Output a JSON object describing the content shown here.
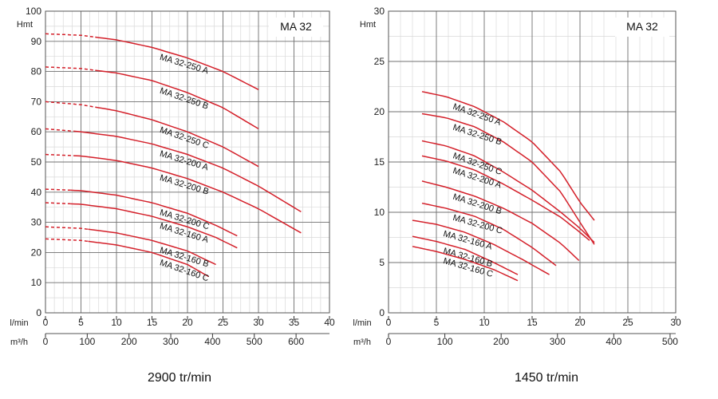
{
  "chart_data": [
    {
      "type": "line",
      "model": "MA 32",
      "speed_label": "2900 tr/min",
      "y_unit": "Hmt",
      "x_unit_top": "l/min",
      "x_unit_bottom": "m³/h",
      "xlim": [
        0,
        40
      ],
      "ylim": [
        0,
        100
      ],
      "x_ticks_top": [
        "0",
        "5",
        "10",
        "15",
        "20",
        "25",
        "30",
        "35",
        "40"
      ],
      "x_ticks_bottom": [
        "0",
        "100",
        "200",
        "300",
        "400",
        "500",
        "600"
      ],
      "y_ticks": [
        "0",
        "10",
        "20",
        "30",
        "40",
        "50",
        "60",
        "70",
        "80",
        "90",
        "100"
      ],
      "series": [
        {
          "name": "MA 32-250 A",
          "dashed_until": 7,
          "x": [
            0,
            5,
            10,
            15,
            20,
            25,
            30
          ],
          "y": [
            92.5,
            92,
            90.5,
            88,
            84.5,
            80,
            74
          ]
        },
        {
          "name": "MA 32-250 B",
          "dashed_until": 7,
          "x": [
            0,
            5,
            10,
            15,
            20,
            25,
            30
          ],
          "y": [
            81.5,
            81,
            79.5,
            77,
            73,
            68,
            61
          ]
        },
        {
          "name": "MA 32-250 C",
          "dashed_until": 7,
          "x": [
            0,
            5,
            10,
            15,
            20,
            25,
            30
          ],
          "y": [
            70,
            69,
            67,
            64,
            60,
            55,
            48.5
          ]
        },
        {
          "name": "MA 32-200 A",
          "dashed_until": 4,
          "x": [
            0,
            5,
            10,
            15,
            20,
            25,
            30,
            36
          ],
          "y": [
            61,
            60,
            58.5,
            56,
            52.5,
            48,
            42,
            33.5
          ]
        },
        {
          "name": "MA 32-200 B",
          "dashed_until": 4,
          "x": [
            0,
            5,
            10,
            15,
            20,
            25,
            30,
            36
          ],
          "y": [
            52.5,
            52,
            50.5,
            48,
            44.5,
            40,
            34.5,
            26.5
          ]
        },
        {
          "name": "MA 32-200 C",
          "dashed_until": 3.5,
          "x": [
            0,
            5,
            10,
            15,
            20,
            24,
            27
          ],
          "y": [
            41,
            40.5,
            39,
            36.5,
            33,
            29,
            25.5
          ]
        },
        {
          "name": "MA 32-160 A",
          "dashed_until": 3.5,
          "x": [
            0,
            5,
            10,
            15,
            20,
            24,
            27
          ],
          "y": [
            36.5,
            36,
            34.5,
            32,
            28.5,
            25,
            21.5
          ]
        },
        {
          "name": "MA 32-160 B",
          "dashed_until": 6,
          "x": [
            0,
            5,
            10,
            15,
            20,
            24
          ],
          "y": [
            28.5,
            28,
            26.5,
            24,
            20.5,
            16
          ]
        },
        {
          "name": "MA 32-160 C",
          "dashed_until": 6,
          "x": [
            0,
            5,
            10,
            15,
            20,
            23
          ],
          "y": [
            24.5,
            24,
            22.5,
            20,
            16,
            12
          ]
        }
      ]
    },
    {
      "type": "line",
      "model": "MA 32",
      "speed_label": "1450 tr/min",
      "y_unit": "Hmt",
      "x_unit_top": "l/min",
      "x_unit_bottom": "m³/h",
      "xlim": [
        0,
        30
      ],
      "ylim": [
        0,
        30
      ],
      "x_ticks_top": [
        "0",
        "5",
        "10",
        "15",
        "20",
        "25",
        "30"
      ],
      "x_ticks_bottom": [
        "0",
        "100",
        "200",
        "300",
        "400",
        "500"
      ],
      "y_ticks": [
        "0",
        "5",
        "10",
        "15",
        "20",
        "25",
        "30"
      ],
      "series": [
        {
          "name": "MA 32-250 A",
          "x": [
            3.5,
            6,
            9,
            12,
            15,
            18,
            20,
            21.5
          ],
          "y": [
            22,
            21.5,
            20.5,
            19,
            17,
            14,
            11,
            9.2
          ]
        },
        {
          "name": "MA 32-250 B",
          "x": [
            3.5,
            6,
            9,
            12,
            15,
            18,
            20,
            21.5
          ],
          "y": [
            19.8,
            19.4,
            18.5,
            17,
            15,
            12,
            9,
            6.8
          ]
        },
        {
          "name": "MA 32-250 C",
          "x": [
            3.5,
            6,
            9,
            12,
            15,
            18,
            20,
            21.5
          ],
          "y": [
            17.1,
            16.6,
            15.6,
            14,
            12.2,
            10,
            8.4,
            7
          ]
        },
        {
          "name": "MA 32-200 A",
          "x": [
            3.5,
            6,
            9,
            12,
            15,
            18,
            20,
            21
          ],
          "y": [
            15.6,
            15.1,
            14.2,
            12.8,
            11.2,
            9.5,
            8,
            7.2
          ]
        },
        {
          "name": "MA 32-200 B",
          "x": [
            3.5,
            6,
            9,
            12,
            15,
            18,
            19.9
          ],
          "y": [
            13.1,
            12.5,
            11.6,
            10.4,
            8.9,
            6.9,
            5.2
          ]
        },
        {
          "name": "MA 32-200 C",
          "x": [
            3.5,
            6,
            9,
            12,
            15,
            17.5
          ],
          "y": [
            10.9,
            10.4,
            9.6,
            8.3,
            6.5,
            4.7
          ]
        },
        {
          "name": "MA 32-160 A",
          "x": [
            2.5,
            5,
            8,
            11,
            14,
            16.8
          ],
          "y": [
            9.2,
            8.8,
            8,
            6.8,
            5.3,
            3.8
          ]
        },
        {
          "name": "MA 32-160 B",
          "x": [
            2.5,
            5,
            8,
            11,
            13.5
          ],
          "y": [
            7.6,
            7.1,
            6.3,
            5,
            3.8
          ]
        },
        {
          "name": "MA 32-160 C",
          "x": [
            2.5,
            5,
            8,
            11,
            13.5
          ],
          "y": [
            6.6,
            6.1,
            5.3,
            4.3,
            3.2
          ]
        }
      ]
    }
  ]
}
